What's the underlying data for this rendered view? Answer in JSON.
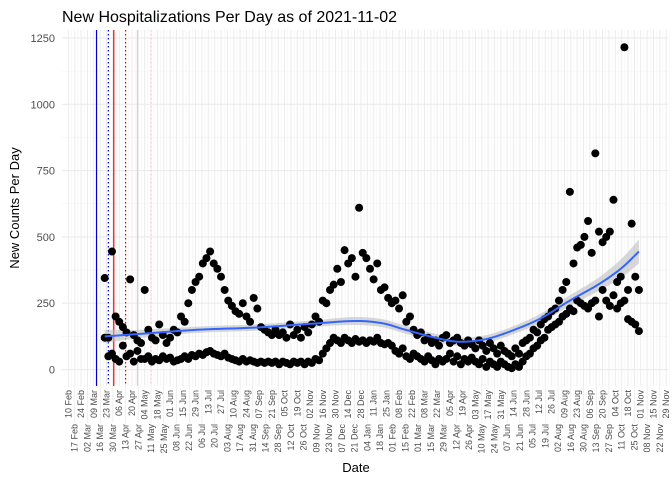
{
  "chart_data": {
    "type": "scatter",
    "title": "New Hospitalizations Per Day as of 2021-11-02",
    "xlabel": "Date",
    "ylabel": "New Counts Per Day",
    "xlim": [
      "2020-02-03",
      "2021-12-01"
    ],
    "ylim": [
      -62,
      1280
    ],
    "y_ticks": [
      0,
      250,
      500,
      750,
      1000,
      1250
    ],
    "x_tick_labels": [
      "10 Feb",
      "17 Feb",
      "24 Feb",
      "02 Mar",
      "09 Mar",
      "16 Mar",
      "23 Mar",
      "30 Mar",
      "06 Apr",
      "13 Apr",
      "20 Apr",
      "27 Apr",
      "04 May",
      "11 May",
      "18 May",
      "25 May",
      "01 Jun",
      "08 Jun",
      "15 Jun",
      "22 Jun",
      "29 Jun",
      "06 Jul",
      "13 Jul",
      "20 Jul",
      "27 Jul",
      "03 Aug",
      "10 Aug",
      "17 Aug",
      "24 Aug",
      "31 Aug",
      "07 Sep",
      "14 Sep",
      "21 Sep",
      "28 Sep",
      "05 Oct",
      "12 Oct",
      "19 Oct",
      "26 Oct",
      "02 Nov",
      "09 Nov",
      "16 Nov",
      "23 Nov",
      "30 Nov",
      "07 Dec",
      "14 Dec",
      "21 Dec",
      "28 Dec",
      "04 Jan",
      "11 Jan",
      "18 Jan",
      "25 Jan",
      "01 Feb",
      "08 Feb",
      "15 Feb",
      "22 Feb",
      "01 Mar",
      "08 Mar",
      "15 Mar",
      "22 Mar",
      "29 Mar",
      "05 Apr",
      "12 Apr",
      "19 Apr",
      "26 Apr",
      "03 May",
      "10 May",
      "17 May",
      "24 May",
      "31 May",
      "07 Jun",
      "14 Jun",
      "21 Jun",
      "28 Jun",
      "05 Jul",
      "12 Jul",
      "19 Jul",
      "26 Jul",
      "02 Aug",
      "09 Aug",
      "16 Aug",
      "23 Aug",
      "30 Aug",
      "06 Sep",
      "13 Sep",
      "20 Sep",
      "27 Sep",
      "04 Oct",
      "11 Oct",
      "18 Oct",
      "25 Oct",
      "01 Nov",
      "08 Nov",
      "15 Nov",
      "22 Nov",
      "29 Nov"
    ],
    "grid": true,
    "point_color": "#000000",
    "x": [
      "2020-03-21",
      "2020-03-25",
      "2020-03-29",
      "2020-04-02",
      "2020-04-06",
      "2020-04-10",
      "2020-04-14",
      "2020-04-18",
      "2020-04-22",
      "2020-04-26",
      "2020-04-30",
      "2020-05-04",
      "2020-05-08",
      "2020-05-12",
      "2020-05-16",
      "2020-05-20",
      "2020-05-24",
      "2020-05-28",
      "2020-06-01",
      "2020-06-05",
      "2020-06-09",
      "2020-06-13",
      "2020-06-17",
      "2020-06-21",
      "2020-06-25",
      "2020-06-29",
      "2020-07-03",
      "2020-07-07",
      "2020-07-11",
      "2020-07-15",
      "2020-07-19",
      "2020-07-23",
      "2020-07-27",
      "2020-07-31",
      "2020-08-04",
      "2020-08-08",
      "2020-08-12",
      "2020-08-16",
      "2020-08-20",
      "2020-08-24",
      "2020-08-28",
      "2020-09-01",
      "2020-09-05",
      "2020-09-09",
      "2020-09-13",
      "2020-09-17",
      "2020-09-21",
      "2020-09-25",
      "2020-09-29",
      "2020-10-03",
      "2020-10-07",
      "2020-10-11",
      "2020-10-15",
      "2020-10-19",
      "2020-10-23",
      "2020-10-27",
      "2020-10-31",
      "2020-11-04",
      "2020-11-08",
      "2020-11-12",
      "2020-11-16",
      "2020-11-20",
      "2020-11-24",
      "2020-11-28",
      "2020-12-02",
      "2020-12-06",
      "2020-12-10",
      "2020-12-14",
      "2020-12-18",
      "2020-12-22",
      "2020-12-26",
      "2020-12-30",
      "2021-01-03",
      "2021-01-07",
      "2021-01-11",
      "2021-01-15",
      "2021-01-19",
      "2021-01-23",
      "2021-01-27",
      "2021-01-31",
      "2021-02-04",
      "2021-02-08",
      "2021-02-12",
      "2021-02-16",
      "2021-02-20",
      "2021-02-24",
      "2021-02-28",
      "2021-03-04",
      "2021-03-08",
      "2021-03-12",
      "2021-03-16",
      "2021-03-20",
      "2021-03-24",
      "2021-03-28",
      "2021-04-01",
      "2021-04-05",
      "2021-04-09",
      "2021-04-13",
      "2021-04-17",
      "2021-04-21",
      "2021-04-25",
      "2021-04-29",
      "2021-05-03",
      "2021-05-07",
      "2021-05-11",
      "2021-05-15",
      "2021-05-19",
      "2021-05-23",
      "2021-05-27",
      "2021-05-31",
      "2021-06-04",
      "2021-06-08",
      "2021-06-12",
      "2021-06-16",
      "2021-06-20",
      "2021-06-24",
      "2021-06-28",
      "2021-07-02",
      "2021-07-06",
      "2021-07-10",
      "2021-07-14",
      "2021-07-18",
      "2021-07-22",
      "2021-07-26",
      "2021-07-30",
      "2021-08-03",
      "2021-08-07",
      "2021-08-11",
      "2021-08-15",
      "2021-08-19",
      "2021-08-23",
      "2021-08-27",
      "2021-08-31",
      "2021-09-04",
      "2021-09-08",
      "2021-09-12",
      "2021-09-16",
      "2021-09-20",
      "2021-09-24",
      "2021-09-28",
      "2021-10-02",
      "2021-10-06",
      "2021-10-10",
      "2021-10-14",
      "2021-10-18",
      "2021-10-22",
      "2021-10-26",
      "2021-10-30"
    ],
    "series": [
      {
        "values": [
          345,
          120,
          445,
          200,
          180,
          160,
          140,
          340,
          130,
          110,
          100,
          300,
          150,
          120,
          110,
          170,
          130,
          100,
          120,
          150,
          140,
          200,
          180,
          250,
          300,
          330,
          350,
          400,
          420,
          445,
          400,
          380,
          350,
          300,
          260,
          240,
          220,
          210,
          250,
          200,
          180,
          270,
          230,
          160,
          150,
          140,
          130,
          150,
          130,
          140,
          120,
          170,
          130,
          150,
          120,
          160,
          140,
          170,
          200,
          180,
          260,
          250,
          300,
          320,
          380,
          330,
          450,
          400,
          420,
          350,
          610,
          440,
          420,
          380,
          340,
          400,
          300,
          310,
          270,
          250,
          260,
          230,
          280,
          180,
          200,
          150,
          130,
          140,
          110,
          120,
          100,
          110,
          90,
          120,
          130,
          100,
          110,
          120,
          100,
          90,
          110,
          95,
          80,
          110,
          90,
          70,
          100,
          80,
          60,
          90,
          70,
          60,
          50,
          80,
          60,
          100,
          110,
          120,
          150,
          140,
          170,
          190,
          200,
          220,
          230,
          260,
          300,
          330,
          670,
          400,
          460,
          470,
          500,
          560,
          440,
          815,
          520,
          480,
          500,
          520,
          640,
          330,
          350,
          1215,
          300,
          550,
          350,
          300
        ]
      },
      {
        "values": [
          120,
          50,
          60,
          40,
          30,
          90,
          50,
          60,
          30,
          70,
          40,
          40,
          50,
          30,
          40,
          35,
          50,
          40,
          45,
          30,
          35,
          40,
          50,
          40,
          55,
          50,
          60,
          55,
          65,
          70,
          60,
          55,
          50,
          60,
          45,
          40,
          35,
          30,
          40,
          30,
          35,
          30,
          25,
          30,
          25,
          30,
          25,
          30,
          20,
          30,
          25,
          20,
          30,
          25,
          30,
          20,
          30,
          25,
          40,
          35,
          60,
          80,
          100,
          120,
          110,
          100,
          120,
          110,
          100,
          115,
          105,
          110,
          100,
          110,
          105,
          120,
          100,
          95,
          100,
          90,
          70,
          60,
          80,
          50,
          40,
          60,
          50,
          40,
          30,
          50,
          35,
          20,
          40,
          30,
          40,
          60,
          30,
          50,
          20,
          40,
          30,
          45,
          30,
          20,
          40,
          10,
          30,
          20,
          10,
          30,
          20,
          10,
          5,
          20,
          10,
          30,
          50,
          60,
          80,
          90,
          110,
          120,
          150,
          160,
          170,
          180,
          200,
          210,
          230,
          220,
          260,
          250,
          240,
          230,
          250,
          260,
          200,
          300,
          260,
          240,
          280,
          230,
          250,
          260,
          190,
          180,
          170,
          145
        ]
      }
    ],
    "smooth": {
      "color": "#3366ff",
      "band_color": "#bebebe",
      "x": [
        "2020-03-21",
        "2020-05-01",
        "2020-07-01",
        "2020-09-01",
        "2020-11-01",
        "2020-12-20",
        "2021-01-20",
        "2021-02-15",
        "2021-03-20",
        "2021-04-15",
        "2021-05-15",
        "2021-06-15",
        "2021-07-15",
        "2021-08-15",
        "2021-09-15",
        "2021-10-10",
        "2021-10-30"
      ],
      "values": [
        125,
        135,
        150,
        158,
        172,
        183,
        175,
        150,
        120,
        105,
        115,
        150,
        195,
        260,
        320,
        380,
        445
      ],
      "se": [
        25,
        15,
        12,
        12,
        12,
        15,
        15,
        15,
        15,
        15,
        15,
        15,
        18,
        20,
        25,
        35,
        45
      ]
    },
    "vertical_lines": [
      {
        "date": "2020-03-12",
        "color": "#0000cc",
        "style": "solid"
      },
      {
        "date": "2020-03-25",
        "color": "#0000cc",
        "style": "dotted"
      },
      {
        "date": "2020-03-31",
        "color": "#ff0000",
        "style": "solid"
      },
      {
        "date": "2020-04-13",
        "color": "#ff0000",
        "style": "dotted"
      },
      {
        "date": "2020-04-26",
        "color": "#ffc0cb",
        "style": "solid"
      },
      {
        "date": "2020-05-11",
        "color": "#ffc0cb",
        "style": "dotted"
      }
    ]
  }
}
